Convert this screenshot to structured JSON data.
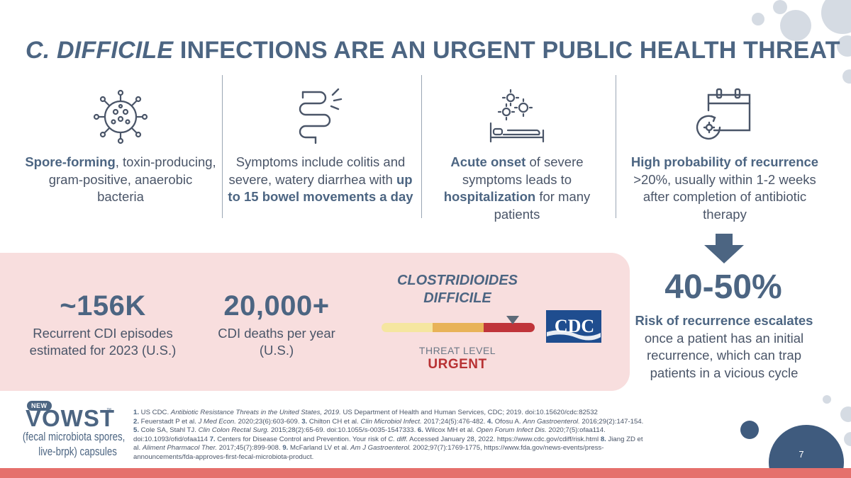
{
  "title": {
    "italic_part": "C. DIFFICILE",
    "rest": " INFECTIONS ARE AN URGENT PUBLIC HEALTH THREAT"
  },
  "columns": [
    {
      "icon": "virus-icon",
      "bold": "Spore-forming",
      "text": ", toxin-producing, gram-positive, anaerobic bacteria"
    },
    {
      "icon": "intestine-icon",
      "text": "Symptoms include colitis and severe, watery diarrhea with ",
      "bold": "up to 15 bowel movements a day"
    },
    {
      "icon": "patient-bed-icon",
      "bold1": "Acute onset",
      "text1": " of severe symptoms leads to ",
      "bold2": "hospitalization",
      "text2": " for many patients"
    },
    {
      "icon": "calendar-recurrence-icon",
      "bold": "High probability of recurrence",
      "text": " >20%, usually within 1-2 weeks after completion of antibiotic therapy"
    }
  ],
  "stats": [
    {
      "value": "~156K",
      "label": "Recurrent CDI episodes estimated for 2023 (U.S.)"
    },
    {
      "value": "20,000+",
      "label": "CDI deaths per year (U.S.)"
    }
  ],
  "threat": {
    "name": "CLOSTRIDIOIDES DIFFICILE",
    "label": "THREAT LEVEL",
    "level": "URGENT",
    "level_fraction": 0.96,
    "colors": [
      "#f5e6a0",
      "#e8b358",
      "#c0343a"
    ]
  },
  "cdc_logo": "CDC",
  "recurrence": {
    "value": "40-50%",
    "bold": "Risk of recurrence escalates",
    "text": " once a patient has an initial recurrence, which can trap patients in a vicious cycle"
  },
  "logo": {
    "badge": "NEW",
    "name": "VOWST",
    "tm": "™",
    "sub1": "(fecal microbiota spores,",
    "sub2": "live-brpk) capsules"
  },
  "references": [
    {
      "num": "1.",
      "text": " US CDC. ",
      "italic": "Antibiotic Resistance Threats in the United States, 2019.",
      "rest": " US Department of Health and Human Services, CDC; 2019. doi:10.15620/cdc:82532"
    },
    {
      "num": "2.",
      "text": " Feuerstadt P et al. ",
      "italic": "J Med Econ.",
      "rest": " 2020;23(6):603-609."
    },
    {
      "num": "3.",
      "text": " Chilton CH et al. ",
      "italic": "Clin Microbiol Infect.",
      "rest": " 2017;24(5):476-482."
    },
    {
      "num": "4.",
      "text": " Ofosu A. ",
      "italic": "Ann Gastroenterol.",
      "rest": " 2016;29(2):147-154."
    },
    {
      "num": "5.",
      "text": " Cole SA, Stahl TJ. ",
      "italic": "Clin Colon Rectal Surg.",
      "rest": " 2015;28(2):65-69. doi:10.1055/s-0035-1547333."
    },
    {
      "num": "6.",
      "text": " Wilcox MH et al. ",
      "italic": "Open Forum Infect Dis.",
      "rest": " 2020;7(5):ofaa114. doi:10.1093/ofid/ofaa114"
    },
    {
      "num": "7.",
      "text": " Centers for Disease Control and Prevention. Your risk of ",
      "italic": "C. diff.",
      "rest": " Accessed January 28, 2022. https://www.cdc.gov/cdiff/risk.html"
    },
    {
      "num": "8.",
      "text": " Jiang ZD et al. ",
      "italic": "Aliment Pharmacol Ther.",
      "rest": " 2017;45(7):899-908."
    },
    {
      "num": "9.",
      "text": " McFarland LV et al. ",
      "italic": "Am J Gastroenterol.",
      "rest": " 2002;97(7):1769-1775, https://www.fda.gov/news-events/press-announcements/fda-approves-first-fecal-microbiota-product."
    }
  ],
  "page_number": "7",
  "colors": {
    "title": "#4c6582",
    "pink_panel": "#f8dede",
    "urgent": "#b83234",
    "bottom_bar": "#e5706c",
    "cdc_blue": "#1f4d8f"
  }
}
